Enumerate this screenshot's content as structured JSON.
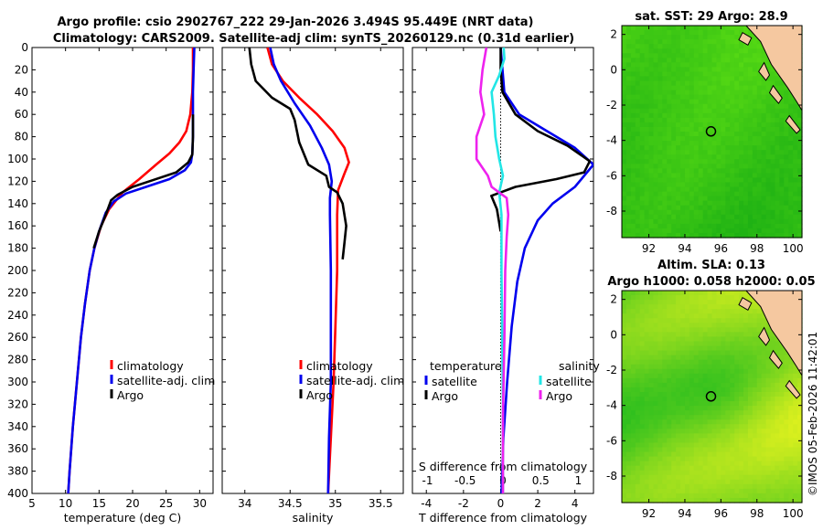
{
  "header": {
    "line1": "Argo profile: csio 2902767_222 29-Jan-2026 3.494S 95.449E (NRT data)",
    "line2": "Climatology: CARS2009. Satellite-adj clim: synTS_20260129.nc (0.31d earlier)"
  },
  "colors": {
    "climatology": "#ff0000",
    "satellite": "#0000ee",
    "argo": "#000000",
    "salinity_sat": "#22e6e6",
    "salinity_argo": "#ee22ee",
    "land": "#f5c8a0"
  },
  "chart_data": [
    {
      "type": "line",
      "name": "temperature",
      "xlabel": "temperature (deg C)",
      "ylabel": "",
      "xlim": [
        5,
        32
      ],
      "ylim": [
        0,
        400
      ],
      "xticks": [
        "5",
        "10",
        "15",
        "20",
        "25",
        "30"
      ],
      "yticks": [
        "0",
        "20",
        "40",
        "60",
        "80",
        "100",
        "120",
        "140",
        "160",
        "180",
        "200",
        "220",
        "240",
        "260",
        "280",
        "300",
        "320",
        "340",
        "360",
        "380",
        "400"
      ],
      "series": [
        {
          "name": "climatology",
          "color": "#ff0000",
          "points": [
            [
              29,
              0
            ],
            [
              29,
              20
            ],
            [
              28.9,
              40
            ],
            [
              28.6,
              60
            ],
            [
              28,
              75
            ],
            [
              27,
              85
            ],
            [
              25.5,
              95
            ],
            [
              23.5,
              105
            ],
            [
              21,
              118
            ],
            [
              18.5,
              130
            ],
            [
              16.5,
              145
            ],
            [
              15.3,
              160
            ],
            [
              14.3,
              180
            ],
            [
              13.6,
              200
            ],
            [
              12.9,
              230
            ],
            [
              12.3,
              260
            ],
            [
              11.7,
              300
            ],
            [
              11.1,
              340
            ],
            [
              10.6,
              380
            ],
            [
              10.4,
              400
            ]
          ]
        },
        {
          "name": "satellite-adj. clim",
          "color": "#0000ee",
          "points": [
            [
              29.2,
              0
            ],
            [
              29.1,
              20
            ],
            [
              29,
              40
            ],
            [
              29,
              60
            ],
            [
              29,
              80
            ],
            [
              28.9,
              95
            ],
            [
              28.7,
              103
            ],
            [
              27.8,
              110
            ],
            [
              25.5,
              118
            ],
            [
              22,
              125
            ],
            [
              19,
              131
            ],
            [
              17.2,
              138
            ],
            [
              16,
              148
            ],
            [
              15,
              165
            ],
            [
              14.3,
              180
            ],
            [
              13.6,
              200
            ],
            [
              12.9,
              230
            ],
            [
              12.3,
              260
            ],
            [
              11.7,
              300
            ],
            [
              11.1,
              340
            ],
            [
              10.6,
              380
            ],
            [
              10.4,
              400
            ]
          ]
        },
        {
          "name": "Argo",
          "color": "#000000",
          "points": [
            [
              29,
              60
            ],
            [
              29,
              80
            ],
            [
              28.9,
              96
            ],
            [
              28.3,
              103
            ],
            [
              26.5,
              112
            ],
            [
              23,
              119
            ],
            [
              20,
              125
            ],
            [
              17.8,
              132
            ],
            [
              16.8,
              137
            ],
            [
              16,
              150
            ],
            [
              15,
              165
            ],
            [
              14.2,
              180
            ]
          ]
        }
      ],
      "legend": [
        "climatology",
        "satellite-adj. clim",
        "Argo"
      ]
    },
    {
      "type": "line",
      "name": "salinity",
      "xlabel": "salinity",
      "xlim": [
        33.75,
        35.75
      ],
      "ylim": [
        0,
        400
      ],
      "xticks": [
        "34",
        "34.5",
        "35",
        "35.5"
      ],
      "series": [
        {
          "name": "climatology",
          "color": "#ff0000",
          "points": [
            [
              34.25,
              0
            ],
            [
              34.3,
              15
            ],
            [
              34.42,
              30
            ],
            [
              34.6,
              45
            ],
            [
              34.8,
              60
            ],
            [
              34.97,
              75
            ],
            [
              35.1,
              90
            ],
            [
              35.15,
              103
            ],
            [
              35.1,
              113
            ],
            [
              35.03,
              128
            ],
            [
              35.02,
              150
            ],
            [
              35.02,
              200
            ],
            [
              35,
              250
            ],
            [
              34.98,
              300
            ],
            [
              34.95,
              350
            ],
            [
              34.92,
              400
            ]
          ]
        },
        {
          "name": "satellite-adj. clim",
          "color": "#0000ee",
          "points": [
            [
              34.28,
              0
            ],
            [
              34.32,
              15
            ],
            [
              34.4,
              30
            ],
            [
              34.55,
              50
            ],
            [
              34.72,
              70
            ],
            [
              34.85,
              90
            ],
            [
              34.93,
              105
            ],
            [
              34.96,
              120
            ],
            [
              34.94,
              135
            ],
            [
              34.94,
              150
            ],
            [
              34.95,
              200
            ],
            [
              34.95,
              250
            ],
            [
              34.95,
              300
            ],
            [
              34.93,
              350
            ],
            [
              34.92,
              400
            ]
          ]
        },
        {
          "name": "Argo",
          "color": "#000000",
          "points": [
            [
              34.05,
              0
            ],
            [
              34.07,
              15
            ],
            [
              34.12,
              30
            ],
            [
              34.3,
              45
            ],
            [
              34.5,
              55
            ],
            [
              34.55,
              65
            ],
            [
              34.6,
              85
            ],
            [
              34.7,
              105
            ],
            [
              34.9,
              115
            ],
            [
              34.93,
              125
            ],
            [
              35.02,
              130
            ],
            [
              35.08,
              140
            ],
            [
              35.12,
              160
            ],
            [
              35.1,
              175
            ],
            [
              35.08,
              190
            ]
          ]
        }
      ],
      "legend": [
        "climatology",
        "satellite-adj. clim",
        "Argo"
      ]
    },
    {
      "type": "line",
      "name": "difference",
      "xlabel": "T difference from climatology",
      "x2label": "S difference from climatology",
      "xlim": [
        -4.75,
        5
      ],
      "x2lim": [
        -1.2,
        1.2
      ],
      "ylim": [
        0,
        400
      ],
      "xticks": [
        "-4",
        "-2",
        "0",
        "2",
        "4"
      ],
      "x2ticks": [
        "-1",
        "-0.5",
        "0",
        "0.5",
        "1"
      ],
      "series": [
        {
          "name": "temperature satellite",
          "axis": "T",
          "color": "#0000ee",
          "points": [
            [
              0,
              0
            ],
            [
              0.1,
              20
            ],
            [
              0.2,
              40
            ],
            [
              1,
              60
            ],
            [
              2.5,
              75
            ],
            [
              4,
              90
            ],
            [
              5,
              105
            ],
            [
              4,
              125
            ],
            [
              2.8,
              140
            ],
            [
              2,
              155
            ],
            [
              1.3,
              180
            ],
            [
              0.9,
              210
            ],
            [
              0.6,
              250
            ],
            [
              0.35,
              300
            ],
            [
              0.15,
              350
            ],
            [
              0.05,
              400
            ]
          ]
        },
        {
          "name": "temperature Argo",
          "axis": "T",
          "color": "#000000",
          "points": [
            [
              0,
              0
            ],
            [
              0,
              20
            ],
            [
              0.1,
              40
            ],
            [
              0.8,
              60
            ],
            [
              2,
              75
            ],
            [
              3.6,
              88
            ],
            [
              4.8,
              102
            ],
            [
              4.5,
              112
            ],
            [
              3,
              118
            ],
            [
              0.8,
              125
            ],
            [
              -0.5,
              133
            ],
            [
              -0.2,
              145
            ],
            [
              0,
              165
            ]
          ]
        },
        {
          "name": "salinity satellite",
          "axis": "S",
          "color": "#22e6e6",
          "points": [
            [
              0.01,
              0
            ],
            [
              0.02,
              10
            ],
            [
              -0.05,
              25
            ],
            [
              -0.15,
              40
            ],
            [
              -0.12,
              60
            ],
            [
              -0.1,
              80
            ],
            [
              -0.05,
              100
            ],
            [
              0.0,
              115
            ],
            [
              -0.05,
              130
            ],
            [
              -0.02,
              150
            ],
            [
              -0.02,
              200
            ],
            [
              -0.01,
              260
            ],
            [
              0,
              320
            ],
            [
              0,
              400
            ]
          ]
        },
        {
          "name": "salinity Argo",
          "axis": "S",
          "color": "#ee22ee",
          "points": [
            [
              -0.22,
              0
            ],
            [
              -0.27,
              20
            ],
            [
              -0.3,
              40
            ],
            [
              -0.25,
              60
            ],
            [
              -0.35,
              80
            ],
            [
              -0.35,
              100
            ],
            [
              -0.2,
              115
            ],
            [
              -0.15,
              125
            ],
            [
              0.05,
              135
            ],
            [
              0.07,
              150
            ],
            [
              0.05,
              170
            ],
            [
              0.03,
              200
            ],
            [
              0.02,
              260
            ],
            [
              0,
              330
            ],
            [
              0,
              400
            ]
          ]
        }
      ],
      "legend_t": {
        "title": "temperature",
        "items": [
          "satellite",
          "Argo"
        ]
      },
      "legend_s": {
        "title": "salinity",
        "items": [
          "satellite",
          "Argo"
        ]
      }
    },
    {
      "type": "heatmap",
      "name": "sst-map",
      "title": "sat. SST: 29 Argo: 28.9",
      "xlim": [
        90.5,
        100.5
      ],
      "ylim": [
        -9.5,
        2.5
      ],
      "xticks": [
        "92",
        "94",
        "96",
        "98",
        "100"
      ],
      "yticks": [
        "2",
        "0",
        "-2",
        "-4",
        "-6",
        "-8"
      ],
      "marker": {
        "lon": 95.45,
        "lat": -3.49
      }
    },
    {
      "type": "heatmap",
      "name": "sla-map",
      "title": "Altim. SLA: 0.13",
      "subtitle": "Argo h1000: 0.058 h2000: 0.05",
      "xlim": [
        90.5,
        100.5
      ],
      "ylim": [
        -9.5,
        2.5
      ],
      "xticks": [
        "92",
        "94",
        "96",
        "98",
        "100"
      ],
      "yticks": [
        "2",
        "0",
        "-2",
        "-4",
        "-6",
        "-8"
      ],
      "marker": {
        "lon": 95.45,
        "lat": -3.49
      }
    }
  ],
  "credit": "©IMOS 05-Feb-2026 11:42:01"
}
